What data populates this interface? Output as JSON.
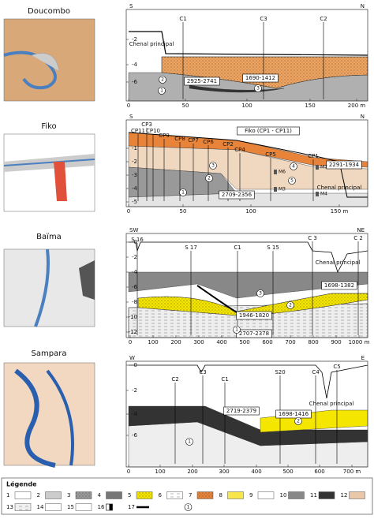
{
  "panels": [
    {
      "name": "Doucombo",
      "orientation": [
        "S",
        "N"
      ],
      "yticks": [
        "-2",
        "-4",
        "-6"
      ],
      "xticks": [
        "0",
        "50",
        "100",
        "150",
        "200 m"
      ],
      "cores": [
        "C1",
        "C3",
        "C2"
      ],
      "channel": "Chenal principal",
      "dates": [
        "2925-2741",
        "1690-1412"
      ],
      "units": [
        "1",
        "2",
        "3"
      ]
    },
    {
      "name": "Fiko",
      "orientation": [
        "S",
        "N"
      ],
      "title": "Fiko (CP1 - CP11)",
      "yticks": [
        "-1",
        "-2",
        "-3",
        "-4",
        "-5"
      ],
      "xticks": [
        "0",
        "50",
        "100",
        "150 m"
      ],
      "cores": [
        "CP11",
        "CP3",
        "CP10",
        "CP9",
        "CP8",
        "CP7",
        "CP6",
        "CP2",
        "CP4",
        "CP5",
        "CP1"
      ],
      "channel": "Chenal principal",
      "dates": [
        "2291-1934",
        "2709-2356"
      ],
      "units": [
        "1",
        "2",
        "3",
        "4",
        "5"
      ],
      "markers": [
        "M7",
        "M6",
        "M4",
        "M3"
      ]
    },
    {
      "name": "Baïma",
      "orientation": [
        "SW",
        "NE"
      ],
      "yticks": [
        "0",
        "-2",
        "-4",
        "-6",
        "-8",
        "-10",
        "-12"
      ],
      "xticks": [
        "0",
        "100",
        "200",
        "300",
        "400",
        "500",
        "600",
        "700",
        "800",
        "900",
        "1000 m"
      ],
      "cores": [
        "S 16",
        "S 17",
        "C1",
        "S 15",
        "C 3",
        "C 2"
      ],
      "channel": "Chenal principal",
      "dates": [
        "1698-1382",
        "1946-1820",
        "2707-2378"
      ],
      "units": [
        "1",
        "2",
        "3"
      ]
    },
    {
      "name": "Sampara",
      "orientation": [
        "W",
        "E"
      ],
      "yticks": [
        "0",
        "-2",
        "-4",
        "-6"
      ],
      "xticks": [
        "0",
        "100",
        "200",
        "300",
        "400",
        "500",
        "600",
        "700 m"
      ],
      "cores": [
        "C2",
        "C3",
        "C1",
        "S20",
        "C4",
        "C5"
      ],
      "channel": "Chenal principal",
      "dates": [
        "2719-2379",
        "1698-1416"
      ],
      "units": [
        "1",
        "2"
      ]
    }
  ],
  "legend": {
    "title": "Légende",
    "items": [
      "1",
      "2",
      "3",
      "4",
      "5",
      "6",
      "7",
      "8",
      "9",
      "10",
      "11",
      "12",
      "13",
      "14",
      "15",
      "16",
      "17"
    ],
    "symbol": "1"
  }
}
